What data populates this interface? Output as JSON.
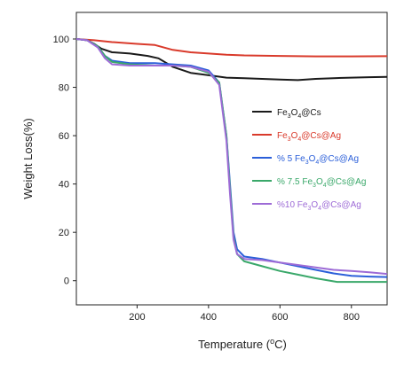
{
  "chart_data": {
    "type": "line",
    "xlabel": "Temperature",
    "xlabel_unit": "C",
    "ylabel": "Weight Loss(%)",
    "xlim": [
      30,
      900
    ],
    "ylim": [
      -10,
      111
    ],
    "x_ticks": [
      200,
      400,
      600,
      800
    ],
    "y_ticks": [
      0,
      20,
      40,
      60,
      80,
      100
    ],
    "grid": false,
    "legend_position": "center-right",
    "series": [
      {
        "name": "Fe3O4@Cs",
        "legend_parts": [
          [
            "Fe",
            0
          ],
          [
            "3",
            1
          ],
          [
            "O",
            0
          ],
          [
            "4",
            1
          ],
          [
            "@Cs",
            0
          ]
        ],
        "color": "#1a1a1a",
        "points": [
          [
            30,
            100
          ],
          [
            60,
            99.5
          ],
          [
            80,
            98
          ],
          [
            100,
            96
          ],
          [
            130,
            94.5
          ],
          [
            180,
            94
          ],
          [
            230,
            93
          ],
          [
            260,
            92
          ],
          [
            300,
            88.5
          ],
          [
            350,
            86
          ],
          [
            400,
            85
          ],
          [
            450,
            84
          ],
          [
            500,
            83.8
          ],
          [
            550,
            83.5
          ],
          [
            600,
            83.2
          ],
          [
            650,
            83
          ],
          [
            700,
            83.5
          ],
          [
            750,
            83.8
          ],
          [
            800,
            84
          ],
          [
            850,
            84.2
          ],
          [
            900,
            84.3
          ]
        ]
      },
      {
        "name": "Fe3O4@Cs@Ag",
        "legend_parts": [
          [
            "Fe",
            0
          ],
          [
            "3",
            1
          ],
          [
            "O",
            0
          ],
          [
            "4",
            1
          ],
          [
            "@Cs@Ag",
            0
          ]
        ],
        "color": "#d93a2b",
        "points": [
          [
            30,
            100
          ],
          [
            80,
            99.5
          ],
          [
            130,
            98.7
          ],
          [
            200,
            98
          ],
          [
            250,
            97.5
          ],
          [
            300,
            95.5
          ],
          [
            350,
            94.5
          ],
          [
            400,
            94
          ],
          [
            450,
            93.5
          ],
          [
            500,
            93.2
          ],
          [
            600,
            93
          ],
          [
            700,
            92.8
          ],
          [
            800,
            92.8
          ],
          [
            900,
            92.9
          ]
        ]
      },
      {
        "name": "% 5 Fe3O4@Cs@Ag",
        "legend_parts": [
          [
            "% 5 Fe",
            0
          ],
          [
            "3",
            1
          ],
          [
            "O",
            0
          ],
          [
            "4",
            1
          ],
          [
            "@Cs@Ag",
            0
          ]
        ],
        "color": "#2b5fd9",
        "points": [
          [
            30,
            100
          ],
          [
            60,
            99.5
          ],
          [
            90,
            97
          ],
          [
            110,
            93
          ],
          [
            130,
            91
          ],
          [
            180,
            90
          ],
          [
            250,
            90
          ],
          [
            300,
            89.5
          ],
          [
            350,
            89
          ],
          [
            400,
            87
          ],
          [
            430,
            82
          ],
          [
            450,
            60
          ],
          [
            460,
            40
          ],
          [
            470,
            20
          ],
          [
            480,
            13
          ],
          [
            500,
            10
          ],
          [
            550,
            9
          ],
          [
            600,
            7.5
          ],
          [
            650,
            6
          ],
          [
            700,
            4.5
          ],
          [
            750,
            3
          ],
          [
            800,
            2
          ],
          [
            850,
            1.7
          ],
          [
            900,
            1.5
          ]
        ]
      },
      {
        "name": "% 7.5 Fe3O4@Cs@Ag",
        "legend_parts": [
          [
            "% 7.5 Fe",
            0
          ],
          [
            "3",
            1
          ],
          [
            "O",
            0
          ],
          [
            "4",
            1
          ],
          [
            "@Cs@Ag",
            0
          ]
        ],
        "color": "#3aa86a",
        "points": [
          [
            30,
            100
          ],
          [
            60,
            99.5
          ],
          [
            90,
            97
          ],
          [
            110,
            93
          ],
          [
            130,
            90.5
          ],
          [
            180,
            89.5
          ],
          [
            250,
            89
          ],
          [
            300,
            89
          ],
          [
            350,
            88.5
          ],
          [
            400,
            86
          ],
          [
            430,
            82
          ],
          [
            450,
            60
          ],
          [
            460,
            38
          ],
          [
            470,
            18
          ],
          [
            480,
            11
          ],
          [
            500,
            8
          ],
          [
            550,
            6
          ],
          [
            600,
            4
          ],
          [
            650,
            2.5
          ],
          [
            700,
            1
          ],
          [
            760,
            -0.5
          ],
          [
            800,
            -0.5
          ],
          [
            850,
            -0.5
          ],
          [
            900,
            -0.5
          ]
        ]
      },
      {
        "name": "%10 Fe3O4@Cs@Ag",
        "legend_parts": [
          [
            "%10 Fe",
            0
          ],
          [
            "3",
            1
          ],
          [
            "O",
            0
          ],
          [
            "4",
            1
          ],
          [
            "@Cs@Ag",
            0
          ]
        ],
        "color": "#9d6bd6",
        "points": [
          [
            30,
            100
          ],
          [
            60,
            99.5
          ],
          [
            90,
            96.5
          ],
          [
            110,
            92
          ],
          [
            130,
            89.5
          ],
          [
            180,
            89
          ],
          [
            250,
            89
          ],
          [
            300,
            89
          ],
          [
            350,
            88.5
          ],
          [
            400,
            86.5
          ],
          [
            430,
            81
          ],
          [
            450,
            58
          ],
          [
            460,
            36
          ],
          [
            470,
            17
          ],
          [
            480,
            11
          ],
          [
            500,
            9
          ],
          [
            550,
            8.5
          ],
          [
            600,
            7.5
          ],
          [
            650,
            6.5
          ],
          [
            700,
            5.5
          ],
          [
            750,
            4.5
          ],
          [
            800,
            4
          ],
          [
            850,
            3.5
          ],
          [
            900,
            2.8
          ]
        ]
      }
    ]
  }
}
